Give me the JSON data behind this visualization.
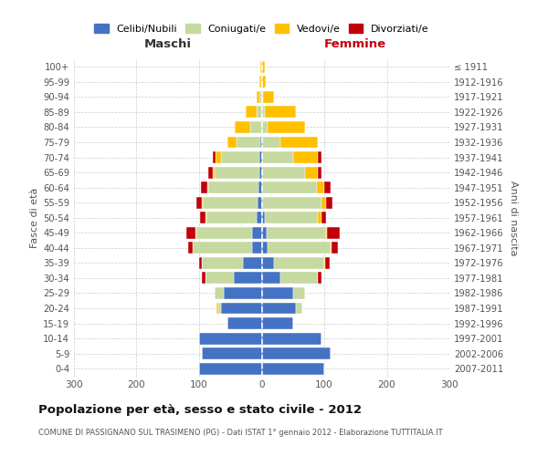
{
  "age_groups": [
    "0-4",
    "5-9",
    "10-14",
    "15-19",
    "20-24",
    "25-29",
    "30-34",
    "35-39",
    "40-44",
    "45-49",
    "50-54",
    "55-59",
    "60-64",
    "65-69",
    "70-74",
    "75-79",
    "80-84",
    "85-89",
    "90-94",
    "95-99",
    "100+"
  ],
  "birth_years": [
    "2007-2011",
    "2002-2006",
    "1997-2001",
    "1992-1996",
    "1987-1991",
    "1982-1986",
    "1977-1981",
    "1972-1976",
    "1967-1971",
    "1962-1966",
    "1957-1961",
    "1952-1956",
    "1947-1951",
    "1942-1946",
    "1937-1941",
    "1932-1936",
    "1927-1931",
    "1922-1926",
    "1917-1921",
    "1912-1916",
    "≤ 1911"
  ],
  "colors": {
    "single": "#4472c4",
    "married": "#c5d9a0",
    "widowed": "#ffc000",
    "divorced": "#c0000b"
  },
  "males_single": [
    100,
    95,
    100,
    55,
    65,
    60,
    45,
    30,
    15,
    15,
    8,
    6,
    5,
    3,
    3,
    2,
    0,
    0,
    0,
    0,
    0
  ],
  "males_married": [
    0,
    0,
    0,
    0,
    5,
    15,
    45,
    65,
    95,
    90,
    80,
    88,
    80,
    72,
    62,
    38,
    18,
    8,
    3,
    1,
    0
  ],
  "males_widowed": [
    0,
    0,
    0,
    0,
    2,
    0,
    0,
    0,
    0,
    1,
    2,
    2,
    2,
    3,
    8,
    15,
    25,
    18,
    5,
    3,
    2
  ],
  "males_divorced": [
    0,
    0,
    0,
    0,
    0,
    0,
    5,
    5,
    8,
    15,
    8,
    8,
    10,
    8,
    5,
    0,
    0,
    0,
    0,
    0,
    0
  ],
  "females_single": [
    100,
    110,
    95,
    50,
    55,
    50,
    30,
    20,
    10,
    8,
    5,
    0,
    0,
    0,
    0,
    0,
    0,
    0,
    0,
    0,
    0
  ],
  "females_married": [
    0,
    0,
    0,
    0,
    10,
    20,
    60,
    80,
    100,
    95,
    85,
    95,
    88,
    70,
    50,
    30,
    10,
    5,
    2,
    1,
    0
  ],
  "females_widowed": [
    0,
    0,
    0,
    0,
    0,
    0,
    0,
    1,
    2,
    2,
    5,
    8,
    12,
    20,
    40,
    60,
    60,
    50,
    18,
    5,
    5
  ],
  "females_divorced": [
    0,
    0,
    0,
    0,
    0,
    0,
    5,
    8,
    10,
    20,
    8,
    10,
    10,
    5,
    5,
    0,
    0,
    0,
    0,
    0,
    0
  ],
  "title": "Popolazione per età, sesso e stato civile - 2012",
  "subtitle": "COMUNE DI PASSIGNANO SUL TRASIMENO (PG) - Dati ISTAT 1° gennaio 2012 - Elaborazione TUTTITALIA.IT",
  "label_maschi": "Maschi",
  "label_femmine": "Femmine",
  "ylabel_left": "Fasce di età",
  "ylabel_right": "Anni di nascita",
  "xlim": 300,
  "legend_labels": [
    "Celibi/Nubili",
    "Coniugati/e",
    "Vedovi/e",
    "Divorziati/e"
  ],
  "background_color": "#ffffff",
  "grid_color": "#cccccc"
}
